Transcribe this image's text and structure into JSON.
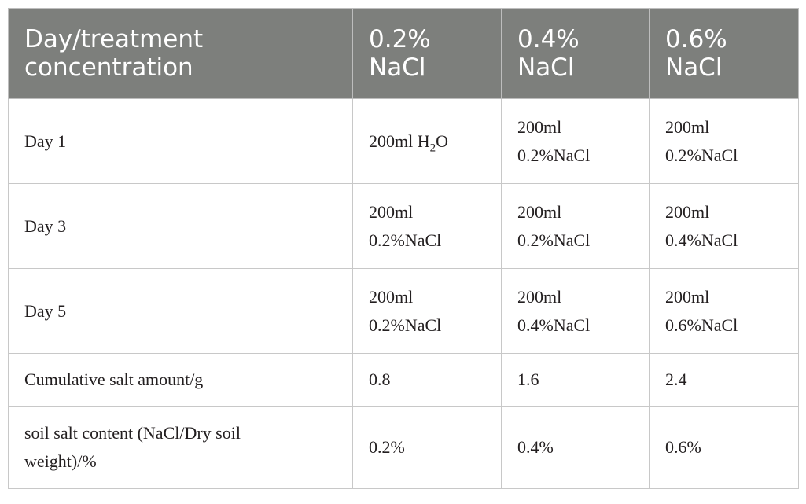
{
  "table": {
    "headers": [
      "Day/treatment concentration",
      "0.2% NaCl",
      "0.4% NaCl",
      "0.6% NaCl"
    ],
    "header_lines": [
      [
        "Day/treatment",
        "concentration"
      ],
      [
        "0.2%",
        "NaCl"
      ],
      [
        "0.4%",
        "NaCl"
      ],
      [
        "0.6%",
        "NaCl"
      ]
    ],
    "rows": [
      {
        "label": "Day 1",
        "cells": [
          {
            "line1": "200ml H",
            "sub": "2",
            "after": "O"
          },
          {
            "line1": "200ml",
            "line2": "0.2%NaCl"
          },
          {
            "line1": "200ml",
            "line2": "0.2%NaCl"
          }
        ]
      },
      {
        "label": "Day 3",
        "cells": [
          {
            "line1": "200ml",
            "line2": "0.2%NaCl"
          },
          {
            "line1": "200ml",
            "line2": "0.2%NaCl"
          },
          {
            "line1": "200ml",
            "line2": "0.4%NaCl"
          }
        ]
      },
      {
        "label": "Day 5",
        "cells": [
          {
            "line1": "200ml",
            "line2": "0.2%NaCl"
          },
          {
            "line1": "200ml",
            "line2": "0.4%NaCl"
          },
          {
            "line1": "200ml",
            "line2": "0.6%NaCl"
          }
        ]
      },
      {
        "label": "Cumulative salt amount/g",
        "cells": [
          {
            "line1": "0.8"
          },
          {
            "line1": "1.6"
          },
          {
            "line1": "2.4"
          }
        ]
      },
      {
        "label_lines": [
          "soil salt content (NaCl/Dry soil",
          "weight)/%"
        ],
        "cells": [
          {
            "line1": "0.2%"
          },
          {
            "line1": "0.4%"
          },
          {
            "line1": "0.6%"
          }
        ]
      }
    ]
  }
}
